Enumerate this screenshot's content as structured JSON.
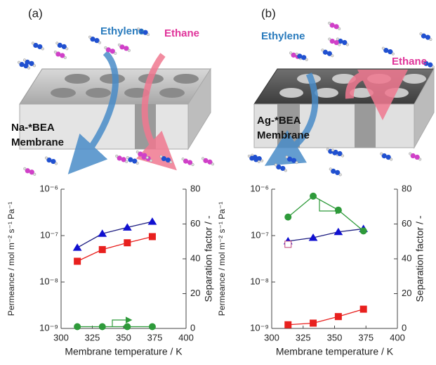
{
  "illustrations": [
    {
      "label": "(a)",
      "gas1": "Ethylene",
      "gas2": "Ethane",
      "membrane": [
        "Na-*BEA",
        "Membrane"
      ]
    },
    {
      "label": "(b)",
      "gas1": "Ethylene",
      "gas2": "Ethane",
      "membrane": [
        "Ag-*BEA",
        "Membrane"
      ]
    }
  ],
  "chart_data": [
    {
      "type": "line",
      "xlabel": "Membrane temperature / K",
      "ylabel": "Permeance / mol m⁻² s⁻¹ Pa⁻¹",
      "y2label": "Separation factor / -",
      "x": [
        313,
        333,
        353,
        373
      ],
      "xlim": [
        300,
        400
      ],
      "xticks": [
        300,
        325,
        350,
        375,
        400
      ],
      "ylog": true,
      "ylim": [
        1e-09,
        1e-06
      ],
      "yticks": [
        {
          "value": 1e-09,
          "label": "10⁻⁹"
        },
        {
          "value": 1e-08,
          "label": "10⁻⁸"
        },
        {
          "value": 1e-07,
          "label": "10⁻⁷"
        },
        {
          "value": 1e-06,
          "label": "10⁻⁶"
        }
      ],
      "y2lim": [
        0,
        80
      ],
      "y2ticks": [
        0,
        20,
        40,
        60,
        80
      ],
      "series": [
        {
          "color": "#1010d0",
          "line_color": "#1c1c80",
          "marker": "triangle",
          "values": [
            5.5e-08,
            1.1e-07,
            1.5e-07,
            2e-07
          ]
        },
        {
          "color": "#e8201e",
          "line_color": "#e8201e",
          "marker": "square",
          "values": [
            2.8e-08,
            5e-08,
            7e-08,
            9.5e-08
          ]
        },
        {
          "color": "#2e9a3a",
          "line_color": "#2e9a3a",
          "marker": "circle",
          "axis": "y2",
          "values": [
            1,
            1,
            1,
            1
          ]
        }
      ]
    },
    {
      "type": "line",
      "xlabel": "Membrane temperature / K",
      "ylabel": "Permeance / mol m⁻² s⁻¹ Pa⁻¹",
      "y2label": "Separation factor / -",
      "x": [
        313,
        333,
        353,
        373
      ],
      "xlim": [
        300,
        400
      ],
      "xticks": [
        300,
        325,
        350,
        375,
        400
      ],
      "ylog": true,
      "ylim": [
        1e-09,
        1e-06
      ],
      "yticks": [
        {
          "value": 1e-09,
          "label": "10⁻⁹"
        },
        {
          "value": 1e-08,
          "label": "10⁻⁸"
        },
        {
          "value": 1e-07,
          "label": "10⁻⁷"
        },
        {
          "value": 1e-06,
          "label": "10⁻⁶"
        }
      ],
      "y2lim": [
        0,
        80
      ],
      "y2ticks": [
        0,
        20,
        40,
        60,
        80
      ],
      "series": [
        {
          "color": "#1010d0",
          "line_color": "#1c1c80",
          "marker": "triangle",
          "values": [
            7.6e-08,
            9e-08,
            1.2e-07,
            1.4e-07
          ]
        },
        {
          "color": "#c0407a",
          "marker": "square",
          "filled": false,
          "values": [
            6.5e-08,
            null,
            null,
            null
          ]
        },
        {
          "color": "#e8201e",
          "line_color": "#e8201e",
          "marker": "square",
          "values": [
            1.2e-09,
            1.3e-09,
            1.8e-09,
            2.6e-09
          ]
        },
        {
          "color": "#2e9a3a",
          "line_color": "#2e9a3a",
          "marker": "circle",
          "axis": "y2",
          "values": [
            64,
            76,
            68,
            56
          ]
        }
      ]
    }
  ]
}
